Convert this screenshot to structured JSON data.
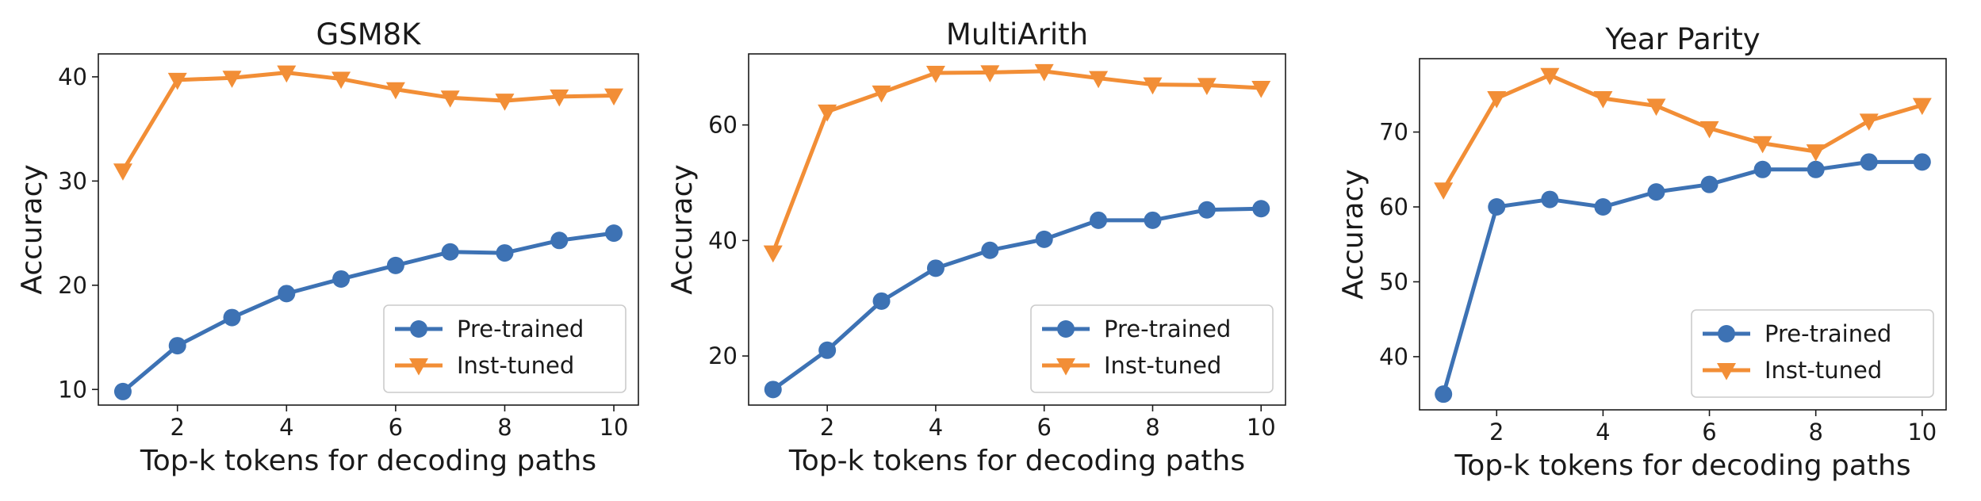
{
  "chart_data": [
    {
      "type": "line",
      "title": "GSM8K",
      "xlabel": "Top-k tokens for decoding paths",
      "ylabel": "Accuracy",
      "x": [
        1,
        2,
        3,
        4,
        5,
        6,
        7,
        8,
        9,
        10
      ],
      "xlim": [
        0.55,
        10.45
      ],
      "ylim": [
        8.5,
        42.2
      ],
      "xticks": [
        2,
        4,
        6,
        8,
        10
      ],
      "yticks": [
        10,
        20,
        30,
        40
      ],
      "grid": false,
      "legend": "lower-right",
      "series": [
        {
          "name": "Pre-trained",
          "color": "#3d72b4",
          "marker": "circle",
          "values": [
            9.8,
            14.2,
            16.9,
            19.2,
            20.6,
            21.9,
            23.2,
            23.1,
            24.3,
            25.0
          ]
        },
        {
          "name": "Inst-tuned",
          "color": "#f28e36",
          "marker": "triangle-down",
          "values": [
            31.0,
            39.7,
            39.9,
            40.4,
            39.8,
            38.8,
            38.0,
            37.7,
            38.1,
            38.2
          ]
        }
      ]
    },
    {
      "type": "line",
      "title": "MultiArith",
      "xlabel": "Top-k tokens for decoding paths",
      "ylabel": "Accuracy",
      "x": [
        1,
        2,
        3,
        4,
        5,
        6,
        7,
        8,
        9,
        10
      ],
      "xlim": [
        0.55,
        10.45
      ],
      "ylim": [
        11.5,
        72.3
      ],
      "xticks": [
        2,
        4,
        6,
        8,
        10
      ],
      "yticks": [
        20,
        40,
        60
      ],
      "grid": false,
      "legend": "lower-right",
      "series": [
        {
          "name": "Pre-trained",
          "color": "#3d72b4",
          "marker": "circle",
          "values": [
            14.2,
            21.0,
            29.5,
            35.2,
            38.3,
            40.2,
            43.5,
            43.5,
            45.3,
            45.5
          ]
        },
        {
          "name": "Inst-tuned",
          "color": "#f28e36",
          "marker": "triangle-down",
          "values": [
            37.9,
            62.3,
            65.6,
            69.0,
            69.1,
            69.3,
            68.1,
            67.0,
            66.9,
            66.4
          ]
        }
      ]
    },
    {
      "type": "line",
      "title": "Year Parity",
      "xlabel": "Top-k tokens for decoding paths",
      "ylabel": "Accuracy",
      "x": [
        1,
        2,
        3,
        4,
        5,
        6,
        7,
        8,
        9,
        10
      ],
      "xlim": [
        0.55,
        10.45
      ],
      "ylim": [
        32.9,
        79.8
      ],
      "xticks": [
        2,
        4,
        6,
        8,
        10
      ],
      "yticks": [
        40,
        50,
        60,
        70
      ],
      "grid": false,
      "legend": "lower-right",
      "series": [
        {
          "name": "Pre-trained",
          "color": "#3d72b4",
          "marker": "circle",
          "values": [
            35.0,
            60.0,
            61.0,
            60.0,
            62.0,
            63.0,
            65.0,
            65.0,
            66.0,
            66.0
          ]
        },
        {
          "name": "Inst-tuned",
          "color": "#f28e36",
          "marker": "triangle-down",
          "values": [
            62.3,
            74.5,
            77.6,
            74.5,
            73.5,
            70.5,
            68.5,
            67.4,
            71.5,
            73.6
          ]
        }
      ]
    }
  ]
}
